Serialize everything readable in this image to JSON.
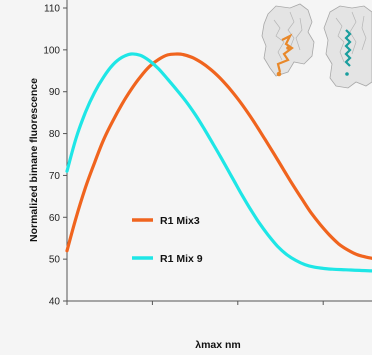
{
  "chart_data": {
    "type": "line",
    "title": "",
    "xlabel": "λmax nm",
    "ylabel": "Normalized bimane fluorescence",
    "xlim": [
      0,
      100
    ],
    "ylim": [
      40,
      110
    ],
    "y_ticks": [
      40,
      50,
      60,
      70,
      80,
      90,
      100,
      110
    ],
    "y_tick_labels": [
      "40",
      "50",
      "60",
      "70",
      "80",
      "90",
      "100",
      "110"
    ],
    "x_ticks_unlabeled": [
      0,
      28,
      56,
      84
    ],
    "grid": false,
    "legend_position": "center-left",
    "series": [
      {
        "name": "R1 Mix3",
        "color": "#f0641e",
        "x": [
          0,
          3,
          6,
          9,
          12,
          15,
          18,
          21,
          24,
          27,
          30,
          33,
          36,
          38,
          41,
          44,
          47,
          50,
          53,
          56,
          59,
          62,
          65,
          68,
          71,
          74,
          77,
          80,
          83,
          86,
          89,
          92,
          95,
          98,
          100
        ],
        "y": [
          52,
          60,
          67,
          73,
          78.5,
          83,
          87,
          90.5,
          93.5,
          96,
          97.7,
          98.8,
          99,
          98.9,
          98.2,
          97,
          95.4,
          93.4,
          91,
          88.3,
          85.3,
          82,
          78.5,
          75,
          71.4,
          67.8,
          64.4,
          61.1,
          58.3,
          55.8,
          53.7,
          52.2,
          51.1,
          50.5,
          50.2
        ]
      },
      {
        "name": "R1 Mix 9",
        "color": "#1ee6e6",
        "x": [
          0,
          3,
          6,
          9,
          12,
          15,
          18,
          21,
          24,
          27,
          30,
          33,
          36,
          39,
          42,
          45,
          48,
          51,
          54,
          57,
          60,
          63,
          66,
          69,
          72,
          75,
          78,
          81,
          84,
          87,
          90,
          93,
          96,
          100
        ],
        "y": [
          71,
          79,
          85,
          89.8,
          93.5,
          96.4,
          98.2,
          99,
          98.7,
          97.4,
          95.5,
          93,
          90.4,
          87.7,
          84.6,
          81.1,
          77.4,
          73.6,
          69.7,
          65.8,
          62.1,
          58.7,
          55.7,
          53.1,
          51.1,
          49.7,
          48.7,
          48.1,
          47.8,
          47.6,
          47.5,
          47.4,
          47.3,
          47.2
        ]
      }
    ]
  },
  "colors": {
    "background": "#f5f5f5",
    "axis": "#555555",
    "r1_mix3": "#f0641e",
    "r1_mix9": "#1ee6e6"
  },
  "inset_images": [
    "structure-thumbnail-orange",
    "structure-thumbnail-cyan"
  ]
}
